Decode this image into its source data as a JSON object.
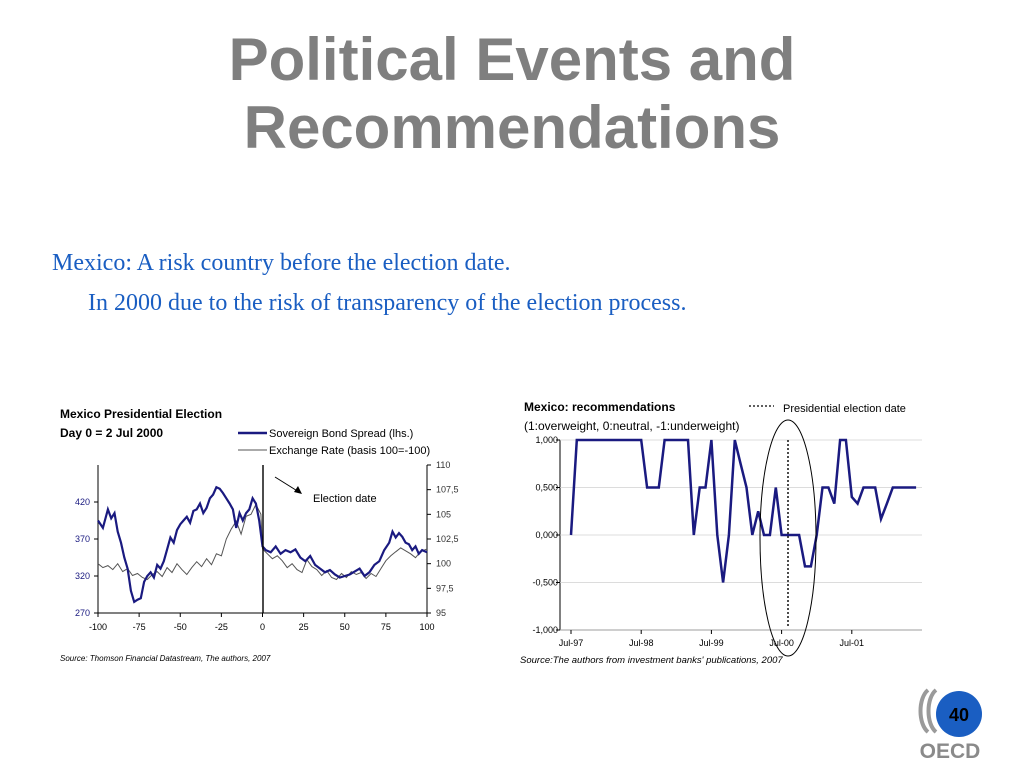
{
  "slide": {
    "title_line1": "Political Events and",
    "title_line2": "Recommendations",
    "bullet1": "Mexico:  A risk country before the election date.",
    "bullet2": "In 2000 due to the risk of transparency of the election process.",
    "page_number": "40",
    "logo_text": "OECD"
  },
  "chart_data": [
    {
      "type": "line",
      "title": "Mexico Presidential Election",
      "subtitle": "Day 0 = 2 Jul 2000",
      "source": "Source: Thomson Financial Datastream, The authors, 2007",
      "annotation": "Election date",
      "x_ticks": [
        "-100",
        "-75",
        "-50",
        "-25",
        "0",
        "25",
        "50",
        "75",
        "100"
      ],
      "xlim": [
        -100,
        100
      ],
      "y_left_ticks": [
        "270",
        "320",
        "370",
        "420"
      ],
      "ylim_left": [
        270,
        470
      ],
      "y_right_ticks": [
        "95",
        "97,5",
        "100",
        "102,5",
        "105",
        "107,5",
        "110"
      ],
      "ylim_right": [
        95,
        110
      ],
      "colors": {
        "spread": "#1a1a80",
        "exchange": "#555555"
      },
      "series": [
        {
          "name": "Sovereign Bond Spread (lhs.)",
          "axis": "left",
          "x": [
            -100,
            -97,
            -94,
            -92,
            -90,
            -88,
            -86,
            -84,
            -82,
            -80,
            -78,
            -76,
            -74,
            -72,
            -70,
            -68,
            -66,
            -64,
            -62,
            -60,
            -58,
            -56,
            -54,
            -52,
            -50,
            -48,
            -46,
            -44,
            -42,
            -40,
            -38,
            -36,
            -34,
            -32,
            -30,
            -28,
            -26,
            -24,
            -22,
            -20,
            -18,
            -16,
            -14,
            -12,
            -10,
            -8,
            -6,
            -4,
            -2,
            0,
            2,
            5,
            8,
            11,
            14,
            17,
            20,
            23,
            26,
            29,
            32,
            35,
            38,
            41,
            44,
            47,
            50,
            53,
            56,
            59,
            62,
            65,
            68,
            71,
            74,
            77,
            79,
            81,
            83,
            85,
            87,
            89,
            91,
            93,
            95,
            97,
            100
          ],
          "values": [
            395,
            385,
            410,
            398,
            405,
            380,
            365,
            345,
            330,
            300,
            285,
            288,
            290,
            312,
            320,
            325,
            318,
            335,
            330,
            340,
            356,
            372,
            365,
            382,
            390,
            395,
            400,
            392,
            408,
            410,
            418,
            405,
            412,
            425,
            430,
            440,
            438,
            432,
            425,
            418,
            410,
            385,
            405,
            395,
            405,
            410,
            425,
            418,
            395,
            360,
            355,
            352,
            360,
            350,
            355,
            352,
            356,
            345,
            340,
            347,
            335,
            330,
            325,
            328,
            322,
            318,
            320,
            322,
            326,
            330,
            320,
            325,
            335,
            340,
            355,
            365,
            380,
            372,
            378,
            373,
            365,
            363,
            355,
            360,
            350,
            355,
            352
          ]
        },
        {
          "name": "Exchange Rate (basis 100=-100)",
          "axis": "right",
          "x": [
            -100,
            -97,
            -94,
            -91,
            -88,
            -85,
            -82,
            -79,
            -76,
            -73,
            -70,
            -67,
            -64,
            -61,
            -58,
            -55,
            -52,
            -49,
            -46,
            -43,
            -40,
            -37,
            -34,
            -31,
            -28,
            -25,
            -22,
            -19,
            -16,
            -13,
            -10,
            -7,
            -4,
            -1,
            0,
            3,
            6,
            9,
            12,
            15,
            18,
            21,
            24,
            27,
            30,
            33,
            36,
            39,
            42,
            45,
            48,
            51,
            54,
            57,
            60,
            63,
            66,
            69,
            72,
            75,
            78,
            81,
            84,
            87,
            90,
            93,
            96,
            100
          ],
          "values": [
            100,
            99.6,
            99.8,
            99.4,
            100,
            99.2,
            99.5,
            98.8,
            99,
            98.6,
            98.4,
            98.9,
            99.2,
            98.7,
            99.6,
            99.1,
            100,
            99.4,
            98.9,
            99.6,
            100.2,
            99.7,
            100.5,
            99.9,
            101,
            100.8,
            102.5,
            103.5,
            104.3,
            103,
            104.8,
            105,
            106,
            105,
            101.5,
            101,
            100.5,
            100.8,
            100.3,
            99.6,
            100,
            99.4,
            99.1,
            100.4,
            99.7,
            99.4,
            98.8,
            99.3,
            98.6,
            98.4,
            99,
            98.6,
            99.2,
            98.9,
            99.1,
            98.5,
            99,
            98.7,
            99.5,
            100.3,
            100.8,
            101.2,
            101.6,
            101.3,
            101,
            100.6,
            101.2,
            101.5
          ]
        }
      ]
    },
    {
      "type": "line",
      "title": "Mexico: recommendations",
      "subtitle": "(1:overweight, 0:neutral, -1:underweight)",
      "source": "Source:The authors from investment banks' publications, 2007",
      "legend_marker": "Presidential election date",
      "x_ticks": [
        "Jul-97",
        "Jul-98",
        "Jul-99",
        "Jul-00",
        "Jul-01"
      ],
      "y_ticks": [
        "-1,000",
        "-0,500",
        "0,000",
        "0,500",
        "1,000"
      ],
      "ylim": [
        -1,
        1
      ],
      "colors": {
        "line": "#1a1a80"
      },
      "series": [
        {
          "name": "",
          "x": [
            0,
            1,
            2,
            3,
            4,
            5,
            6,
            7,
            8,
            9,
            10,
            11,
            12,
            13,
            14,
            15,
            16,
            17,
            18,
            19,
            20,
            21,
            22,
            23,
            24,
            25,
            26,
            27,
            28,
            29,
            30,
            31,
            32,
            33,
            34,
            35,
            36,
            37,
            38,
            39,
            40,
            41,
            42,
            43,
            44,
            45,
            46,
            47,
            48,
            49,
            50,
            51,
            52,
            53,
            54,
            55,
            56,
            57,
            58,
            59
          ],
          "values": [
            0,
            1,
            1,
            1,
            1,
            1,
            1,
            1,
            1,
            1,
            1,
            1,
            1,
            0.5,
            0.5,
            0.5,
            1,
            1,
            1,
            1,
            1,
            0,
            0.5,
            0.5,
            1,
            0,
            -0.5,
            0,
            1,
            0.75,
            0.5,
            0,
            0.25,
            0,
            0,
            0.5,
            0,
            0,
            0,
            0,
            -0.33,
            -0.33,
            0,
            0.5,
            0.5,
            0.33,
            1,
            1,
            0.4,
            0.33,
            0.5,
            0.5,
            0.5,
            0.17,
            0.33,
            0.5,
            0.5,
            0.5,
            0.5,
            0.5
          ]
        }
      ]
    }
  ]
}
